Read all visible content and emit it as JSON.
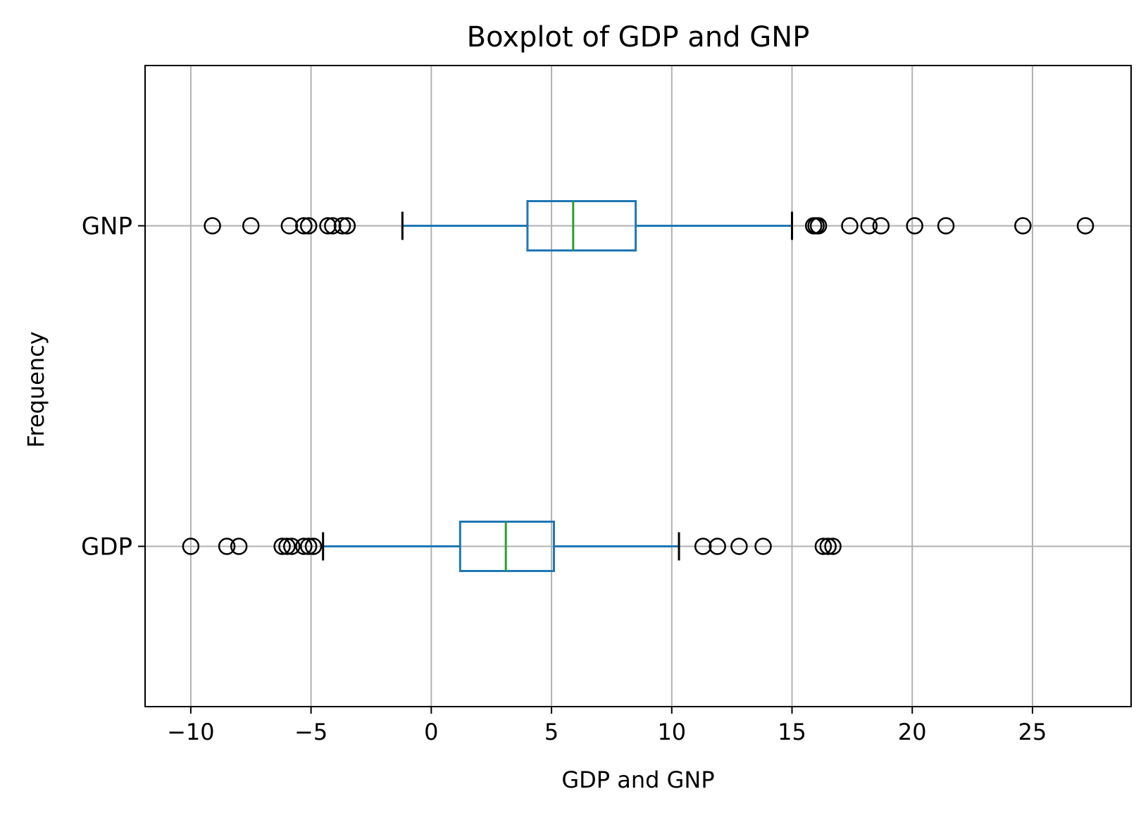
{
  "chart_data": {
    "type": "boxplot",
    "orientation": "horizontal",
    "title": "Boxplot of GDP and GNP",
    "xlabel": "GDP and GNP",
    "ylabel": "Frequency",
    "xlim": [
      -11.9,
      29.1
    ],
    "xticks": [
      -10,
      -5,
      0,
      5,
      10,
      15,
      20,
      25
    ],
    "xtick_labels": [
      "−10",
      "−5",
      "0",
      "5",
      "10",
      "15",
      "20",
      "25"
    ],
    "grid": true,
    "categories": [
      "GDP",
      "GNP"
    ],
    "series": [
      {
        "name": "GDP",
        "whisker_low": -4.5,
        "q1": 1.2,
        "median": 3.1,
        "q3": 5.1,
        "whisker_high": 10.3,
        "outliers": [
          -10.0,
          -8.5,
          -8.0,
          -6.2,
          -6.0,
          -5.8,
          -5.3,
          -5.1,
          -4.9,
          11.3,
          11.9,
          12.8,
          13.8,
          16.3,
          16.5,
          16.7
        ]
      },
      {
        "name": "GNP",
        "whisker_low": -1.2,
        "q1": 4.0,
        "median": 5.9,
        "q3": 8.5,
        "whisker_high": 15.0,
        "outliers": [
          -9.1,
          -7.5,
          -5.9,
          -5.3,
          -5.1,
          -4.3,
          -4.1,
          -3.7,
          -3.5,
          15.9,
          16.0,
          16.1,
          17.4,
          18.2,
          18.7,
          20.1,
          21.4,
          24.6,
          27.2
        ]
      }
    ],
    "colors": {
      "box": "#1f77b4",
      "median": "#2ca02c",
      "whisker_cap": "#000000",
      "outlier": "#000000",
      "grid": "#b0b0b0"
    }
  }
}
